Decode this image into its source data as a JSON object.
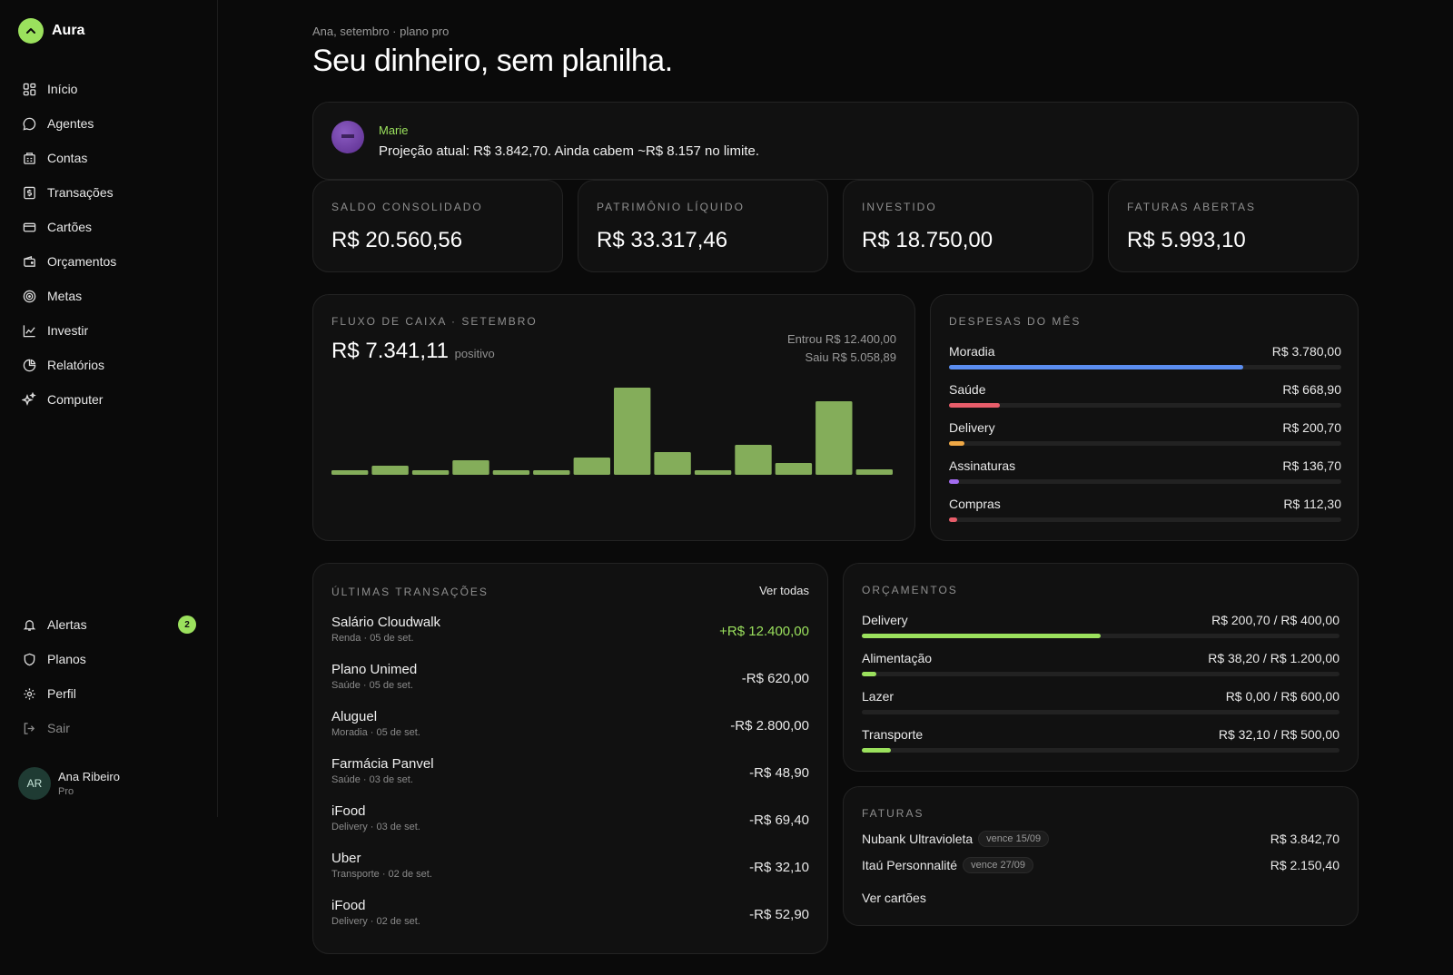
{
  "brand": {
    "name": "Aura",
    "accent": "#9be15d"
  },
  "nav": [
    {
      "label": "Início",
      "icon": "grid-icon"
    },
    {
      "label": "Agentes",
      "icon": "chat-icon"
    },
    {
      "label": "Contas",
      "icon": "bank-icon"
    },
    {
      "label": "Transações",
      "icon": "dollar-receipt-icon"
    },
    {
      "label": "Cartões",
      "icon": "credit-card-icon"
    },
    {
      "label": "Orçamentos",
      "icon": "wallet-icon"
    },
    {
      "label": "Metas",
      "icon": "target-icon"
    },
    {
      "label": "Investir",
      "icon": "line-chart-icon"
    },
    {
      "label": "Relatórios",
      "icon": "pie-chart-icon"
    },
    {
      "label": "Computer",
      "icon": "sparkle-icon"
    }
  ],
  "nav_bottom": {
    "alerts": {
      "label": "Alertas",
      "count": "2"
    },
    "plans": {
      "label": "Planos"
    },
    "profile": {
      "label": "Perfil"
    },
    "logout": {
      "label": "Sair"
    }
  },
  "user": {
    "initials": "AR",
    "name": "Ana Ribeiro",
    "plan": "Pro"
  },
  "header": {
    "eyebrow": "Ana, setembro · plano pro",
    "title": "Seu dinheiro, sem planilha."
  },
  "agent": {
    "name": "Marie",
    "message": "Projeção atual: R$ 3.842,70. Ainda cabem ~R$ 8.157 no limite."
  },
  "kpis": [
    {
      "label": "Saldo consolidado",
      "value": "R$ 20.560,56"
    },
    {
      "label": "Patrimônio líquido",
      "value": "R$ 33.317,46"
    },
    {
      "label": "Investido",
      "value": "R$ 18.750,00"
    },
    {
      "label": "Faturas abertas",
      "value": "R$ 5.993,10"
    }
  ],
  "cashflow": {
    "label": "Fluxo de caixa · setembro",
    "total": "R$ 7.341,11",
    "total_note": "positivo",
    "in": "Entrou R$ 12.400,00",
    "out": "Saiu R$ 5.058,89"
  },
  "chart_data": {
    "type": "bar",
    "values": [
      5,
      10,
      5,
      16,
      5,
      5,
      19,
      96,
      25,
      5,
      33,
      13,
      81,
      6
    ],
    "color": "#84ad5a"
  },
  "expenses": {
    "label": "Despesas do mês",
    "items": [
      {
        "name": "Moradia",
        "value": "R$ 3.780,00",
        "pct": 0.75,
        "color": "#5b8def"
      },
      {
        "name": "Saúde",
        "value": "R$ 668,90",
        "pct": 0.13,
        "color": "#e85d6a"
      },
      {
        "name": "Delivery",
        "value": "R$ 200,70",
        "pct": 0.04,
        "color": "#f0a946"
      },
      {
        "name": "Assinaturas",
        "value": "R$ 136,70",
        "pct": 0.025,
        "color": "#a26bf0"
      },
      {
        "name": "Compras",
        "value": "R$ 112,30",
        "pct": 0.02,
        "color": "#e85d6a"
      }
    ]
  },
  "transactions": {
    "label": "Últimas transações",
    "see_all": "Ver todas",
    "items": [
      {
        "name": "Salário Cloudwalk",
        "meta": "Renda · 05 de set.",
        "amount": "+R$ 12.400,00",
        "positive": true
      },
      {
        "name": "Plano Unimed",
        "meta": "Saúde · 05 de set.",
        "amount": "-R$ 620,00"
      },
      {
        "name": "Aluguel",
        "meta": "Moradia · 05 de set.",
        "amount": "-R$ 2.800,00"
      },
      {
        "name": "Farmácia Panvel",
        "meta": "Saúde · 03 de set.",
        "amount": "-R$ 48,90"
      },
      {
        "name": "iFood",
        "meta": "Delivery · 03 de set.",
        "amount": "-R$ 69,40"
      },
      {
        "name": "Uber",
        "meta": "Transporte · 02 de set.",
        "amount": "-R$ 32,10"
      },
      {
        "name": "iFood",
        "meta": "Delivery · 02 de set.",
        "amount": "-R$ 52,90"
      }
    ]
  },
  "budgets": {
    "label": "Orçamentos",
    "items": [
      {
        "name": "Delivery",
        "value": "R$ 200,70 / R$ 400,00",
        "pct": 0.5
      },
      {
        "name": "Alimentação",
        "value": "R$ 38,20 / R$ 1.200,00",
        "pct": 0.03
      },
      {
        "name": "Lazer",
        "value": "R$ 0,00 / R$ 600,00",
        "pct": 0
      },
      {
        "name": "Transporte",
        "value": "R$ 32,10 / R$ 500,00",
        "pct": 0.06
      }
    ]
  },
  "invoices": {
    "label": "Faturas",
    "items": [
      {
        "name": "Nubank Ultravioleta",
        "due": "vence 15/09",
        "amount": "R$ 3.842,70"
      },
      {
        "name": "Itaú Personnalité",
        "due": "vence 27/09",
        "amount": "R$ 2.150,40"
      }
    ],
    "link": "Ver cartões"
  }
}
